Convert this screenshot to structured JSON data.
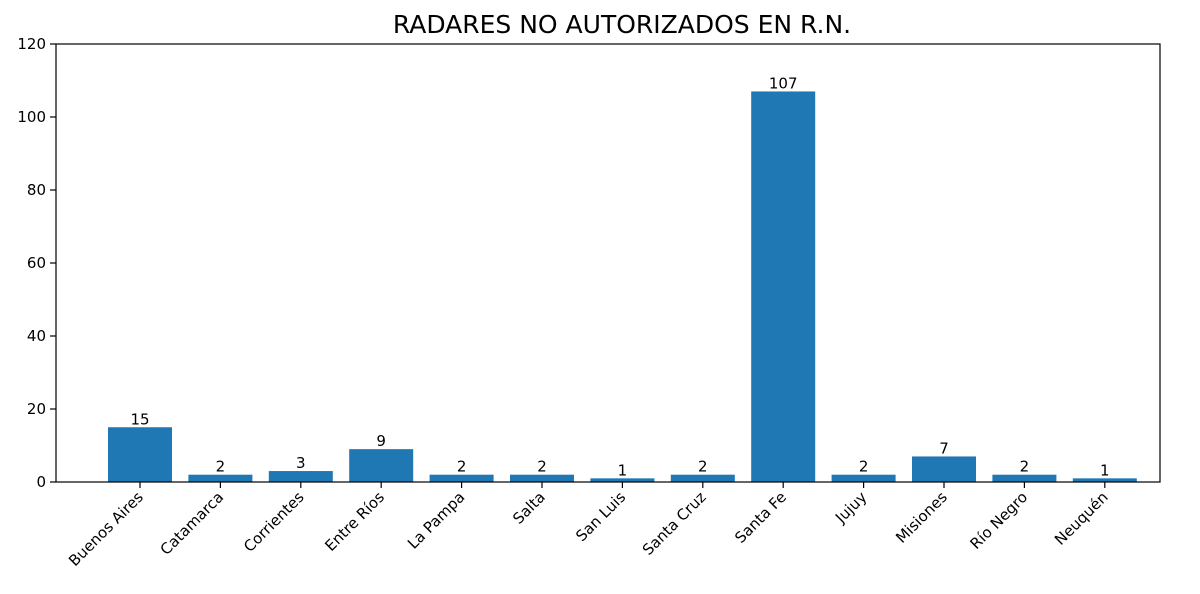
{
  "chart_data": {
    "type": "bar",
    "title": "RADARES NO AUTORIZADOS EN R.N.",
    "xlabel": "",
    "ylabel": "",
    "categories": [
      "Buenos Aires",
      "Catamarca",
      "Corrientes",
      "Entre Ríos",
      "La Pampa",
      "Salta",
      "San Luis",
      "Santa Cruz",
      "Santa Fe",
      "Jujuy",
      "Misiones",
      "Río Negro",
      "Neuquén"
    ],
    "values": [
      15,
      2,
      3,
      9,
      2,
      2,
      1,
      2,
      107,
      2,
      7,
      2,
      1
    ],
    "data_labels": [
      "15",
      "2",
      "3",
      "9",
      "2",
      "2",
      "1",
      "2",
      "107",
      "2",
      "7",
      "2",
      "1"
    ],
    "ylim": [
      0,
      120
    ],
    "yticks": [
      0,
      20,
      40,
      60,
      80,
      100,
      120
    ],
    "xtick_rotation": 45,
    "grid": false,
    "legend": "none",
    "bar_color": "#1f77b4"
  }
}
